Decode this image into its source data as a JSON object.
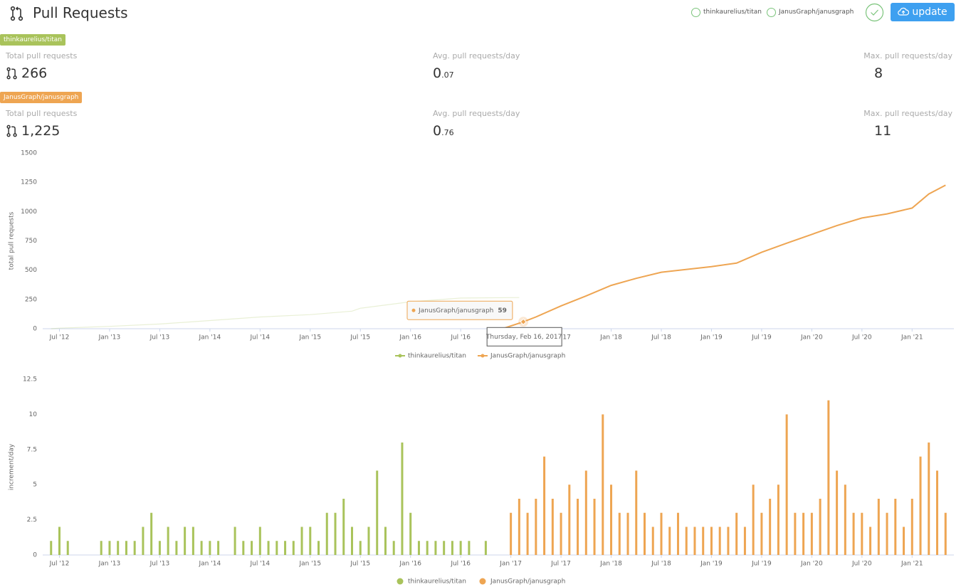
{
  "header": {
    "title": "Pull Requests",
    "button": "update"
  },
  "stats": [
    {
      "repo": "thinkaurelius/titan",
      "total_label": "Total pull requests",
      "total": "266",
      "avg_label": "Avg. pull requests/day",
      "avg_int": "0",
      "avg_frac": ".07",
      "max_label": "Max. pull requests/day",
      "max": "8"
    },
    {
      "repo": "JanusGraph/janusgraph",
      "total_label": "Total pull requests",
      "total": "1,225",
      "avg_label": "Avg. pull requests/day",
      "avg_int": "0",
      "avg_frac": ".76",
      "max_label": "Max. pull requests/day",
      "max": "11"
    }
  ],
  "chart_data": [
    {
      "type": "line",
      "ylabel": "total pull requests",
      "xlim": [
        "2012-05",
        "2021-06"
      ],
      "ylim": [
        0,
        1500
      ],
      "yticks": [
        0,
        250,
        500,
        750,
        1000,
        1250,
        1500
      ],
      "xticks": [
        {
          "value": "2012-07",
          "label": "Jul '12"
        },
        {
          "value": "2013-01",
          "label": "Jan '13"
        },
        {
          "value": "2013-07",
          "label": "Jul '13"
        },
        {
          "value": "2014-01",
          "label": "Jan '14"
        },
        {
          "value": "2014-07",
          "label": "Jul '14"
        },
        {
          "value": "2015-01",
          "label": "Jan '15"
        },
        {
          "value": "2015-07",
          "label": "Jul '15"
        },
        {
          "value": "2016-01",
          "label": "Jan '16"
        },
        {
          "value": "2016-07",
          "label": "Jul '16"
        },
        {
          "value": "2017-01",
          "label": "Jan '17"
        },
        {
          "value": "2017-07",
          "label": "Jul '17"
        },
        {
          "value": "2018-01",
          "label": "Jan '18"
        },
        {
          "value": "2018-07",
          "label": "Jul '18"
        },
        {
          "value": "2019-01",
          "label": "Jan '19"
        },
        {
          "value": "2019-07",
          "label": "Jul '19"
        },
        {
          "value": "2020-01",
          "label": "Jan '20"
        },
        {
          "value": "2020-07",
          "label": "Jul '20"
        },
        {
          "value": "2021-01",
          "label": "Jan '21"
        }
      ],
      "series": [
        {
          "name": "thinkaurelius/titan",
          "color": "#a9c35b",
          "x": [
            "2012-06",
            "2012-07",
            "2013-01",
            "2013-07",
            "2014-01",
            "2014-07",
            "2015-01",
            "2015-06",
            "2015-07",
            "2016-01",
            "2016-07",
            "2017-02"
          ],
          "values": [
            0,
            5,
            20,
            40,
            70,
            100,
            120,
            150,
            175,
            230,
            262,
            266
          ]
        },
        {
          "name": "JanusGraph/janusgraph",
          "color": "#eea552",
          "x": [
            "2016-12",
            "2017-02-16",
            "2017-04",
            "2017-07",
            "2017-10",
            "2018-01",
            "2018-04",
            "2018-07",
            "2019-01",
            "2019-04",
            "2019-07",
            "2019-10",
            "2020-01",
            "2020-04",
            "2020-07",
            "2020-10",
            "2021-01",
            "2021-03",
            "2021-05"
          ],
          "values": [
            0,
            59,
            100,
            195,
            280,
            370,
            430,
            482,
            530,
            560,
            652,
            730,
            805,
            880,
            945,
            980,
            1030,
            1150,
            1225
          ]
        }
      ],
      "tooltip": {
        "series": 1,
        "point": 1,
        "label": "Thursday, Feb 16, 2017"
      }
    },
    {
      "type": "bar",
      "ylabel": "increment/day",
      "xlim": [
        "2012-05",
        "2021-06"
      ],
      "ylim": [
        0,
        12.5
      ],
      "yticks": [
        0,
        2.5,
        5,
        7.5,
        10,
        12.5
      ],
      "xticks": [
        {
          "value": "2012-07",
          "label": "Jul '12"
        },
        {
          "value": "2013-01",
          "label": "Jan '13"
        },
        {
          "value": "2013-07",
          "label": "Jul '13"
        },
        {
          "value": "2014-01",
          "label": "Jan '14"
        },
        {
          "value": "2014-07",
          "label": "Jul '14"
        },
        {
          "value": "2015-01",
          "label": "Jan '15"
        },
        {
          "value": "2015-07",
          "label": "Jul '15"
        },
        {
          "value": "2016-01",
          "label": "Jan '16"
        },
        {
          "value": "2016-07",
          "label": "Jul '16"
        },
        {
          "value": "2017-01",
          "label": "Jan '17"
        },
        {
          "value": "2017-07",
          "label": "Jul '17"
        },
        {
          "value": "2018-01",
          "label": "Jan '18"
        },
        {
          "value": "2018-07",
          "label": "Jul '18"
        },
        {
          "value": "2019-01",
          "label": "Jan '19"
        },
        {
          "value": "2019-07",
          "label": "Jul '19"
        },
        {
          "value": "2020-01",
          "label": "Jan '20"
        },
        {
          "value": "2020-07",
          "label": "Jul '20"
        },
        {
          "value": "2021-01",
          "label": "Jan '21"
        }
      ],
      "series": [
        {
          "name": "thinkaurelius/titan",
          "color": "#a9c35b",
          "x": [
            "2012-06",
            "2012-07",
            "2012-08",
            "2012-12",
            "2013-01",
            "2013-02",
            "2013-03",
            "2013-04",
            "2013-05",
            "2013-06",
            "2013-07",
            "2013-08",
            "2013-09",
            "2013-10",
            "2013-11",
            "2013-12",
            "2014-01",
            "2014-02",
            "2014-04",
            "2014-05",
            "2014-06",
            "2014-07",
            "2014-08",
            "2014-09",
            "2014-10",
            "2014-11",
            "2014-12",
            "2015-01",
            "2015-02",
            "2015-03",
            "2015-04",
            "2015-05",
            "2015-06",
            "2015-07",
            "2015-08",
            "2015-09",
            "2015-10",
            "2015-11",
            "2015-12",
            "2016-01",
            "2016-02",
            "2016-03",
            "2016-04",
            "2016-05",
            "2016-06",
            "2016-07",
            "2016-08",
            "2016-10"
          ],
          "values": [
            1,
            2,
            1,
            1,
            1,
            1,
            1,
            1,
            2,
            3,
            1,
            2,
            1,
            2,
            2,
            1,
            1,
            1,
            2,
            1,
            1,
            2,
            1,
            1,
            1,
            1,
            2,
            2,
            1,
            3,
            3,
            4,
            2,
            1,
            2,
            6,
            2,
            1,
            8,
            3,
            1,
            1,
            1,
            1,
            1,
            1,
            1,
            1
          ]
        },
        {
          "name": "JanusGraph/janusgraph",
          "color": "#eea552",
          "x": [
            "2017-01",
            "2017-02",
            "2017-03",
            "2017-04",
            "2017-05",
            "2017-06",
            "2017-07",
            "2017-08",
            "2017-09",
            "2017-10",
            "2017-11",
            "2017-12",
            "2018-01",
            "2018-02",
            "2018-03",
            "2018-04",
            "2018-05",
            "2018-06",
            "2018-07",
            "2018-08",
            "2018-09",
            "2018-10",
            "2018-11",
            "2018-12",
            "2019-01",
            "2019-02",
            "2019-03",
            "2019-04",
            "2019-05",
            "2019-06",
            "2019-07",
            "2019-08",
            "2019-09",
            "2019-10",
            "2019-11",
            "2019-12",
            "2020-01",
            "2020-02",
            "2020-03",
            "2020-04",
            "2020-05",
            "2020-06",
            "2020-07",
            "2020-08",
            "2020-09",
            "2020-10",
            "2020-11",
            "2020-12",
            "2021-01",
            "2021-02",
            "2021-03",
            "2021-04",
            "2021-05"
          ],
          "values": [
            3,
            4,
            3,
            4,
            7,
            4,
            3,
            5,
            4,
            6,
            4,
            10,
            5,
            3,
            3,
            6,
            3,
            2,
            3,
            2,
            3,
            2,
            2,
            2,
            2,
            2,
            2,
            3,
            2,
            5,
            3,
            4,
            5,
            10,
            3,
            3,
            3,
            4,
            11,
            6,
            5,
            3,
            3,
            2,
            4,
            3,
            4,
            2,
            4,
            7,
            8,
            6,
            3
          ]
        }
      ]
    }
  ]
}
